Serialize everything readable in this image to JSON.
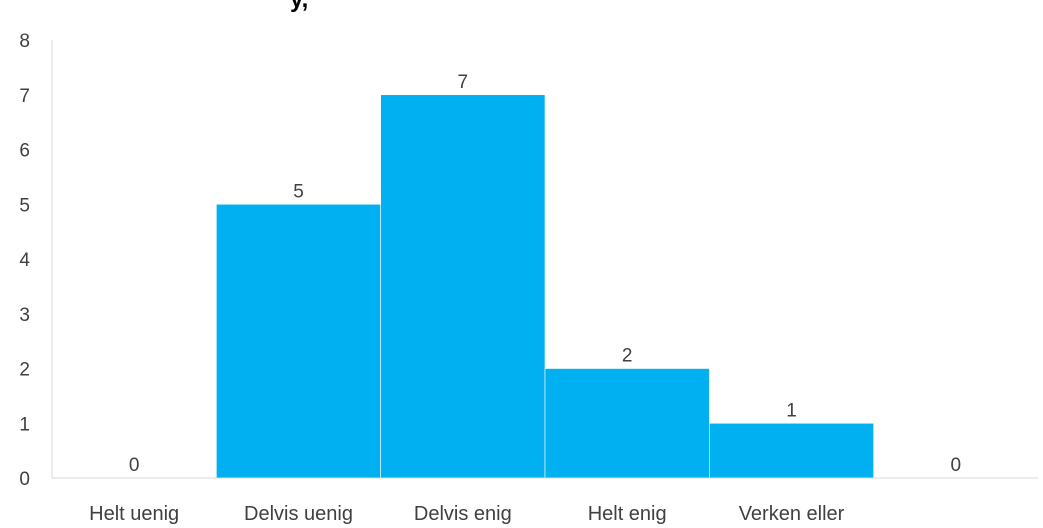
{
  "chart_data": {
    "type": "bar",
    "title": "y,",
    "xlabel": "",
    "ylabel": "",
    "categories": [
      "Helt uenig",
      "Delvis uenig",
      "Delvis enig",
      "Helt enig",
      "Verken eller",
      ""
    ],
    "values": [
      0,
      5,
      7,
      2,
      1,
      0
    ],
    "ylim": [
      0,
      8
    ],
    "yticks": [
      0,
      1,
      2,
      3,
      4,
      5,
      6,
      7,
      8
    ],
    "grid": false,
    "legend": "none",
    "colors": {
      "bar": "#00B0F0",
      "axis": "#D9D9D9",
      "text": "#404040"
    }
  }
}
